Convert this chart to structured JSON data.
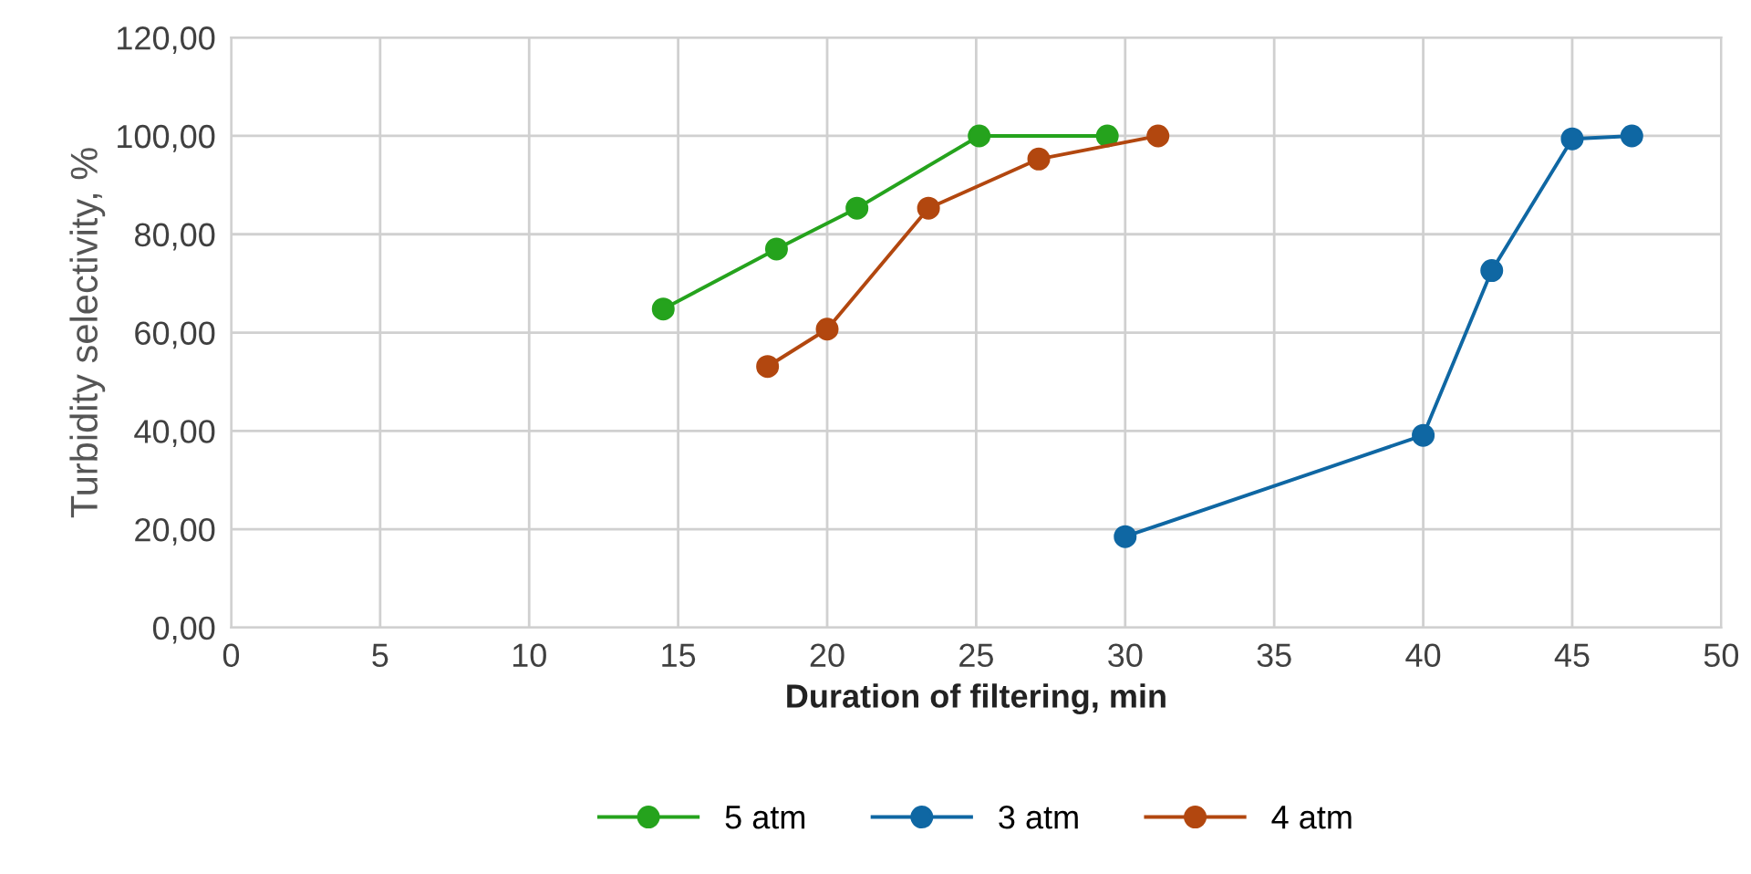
{
  "chart_data": {
    "type": "line",
    "xlabel": "Duration of filtering, min",
    "ylabel": "Turbidity selectivity, %",
    "xlim": [
      0,
      50
    ],
    "xticks": [
      0,
      5,
      10,
      15,
      20,
      25,
      30,
      35,
      40,
      45,
      50
    ],
    "ylim": [
      0,
      120
    ],
    "yticks": [
      {
        "value": 0,
        "label": "0,00"
      },
      {
        "value": 20,
        "label": "20,00"
      },
      {
        "value": 40,
        "label": "40,00"
      },
      {
        "value": 60,
        "label": "60,00"
      },
      {
        "value": 80,
        "label": "80,00"
      },
      {
        "value": 100,
        "label": "100,00"
      },
      {
        "value": 120,
        "label": "120,00"
      }
    ],
    "grid": true,
    "legend": "bottom",
    "marker": "circle",
    "line_style": "solid",
    "series": [
      {
        "name": "5 atm",
        "color": "#25a31d",
        "x": [
          14.5,
          18.3,
          21.0,
          25.1,
          29.4
        ],
        "values": [
          64.8,
          77,
          85.3,
          100,
          100
        ]
      },
      {
        "name": "3 atm",
        "color": "#0f67a3",
        "x": [
          30.0,
          40.0,
          42.3,
          45.0,
          47.0
        ],
        "values": [
          18.5,
          39.1,
          72.6,
          99.4,
          100
        ]
      },
      {
        "name": "4 atm",
        "color": "#b2470f",
        "x": [
          18.0,
          20.0,
          23.4,
          27.1,
          31.1
        ],
        "values": [
          53.1,
          60.7,
          85.3,
          95.3,
          100
        ]
      }
    ]
  }
}
